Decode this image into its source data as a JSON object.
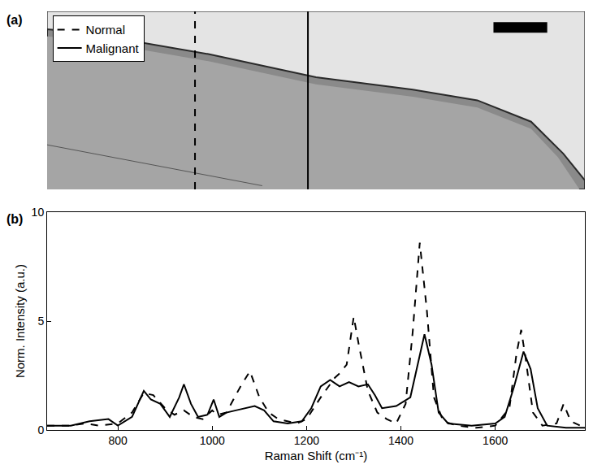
{
  "image_panel": {
    "label": "(a)"
  },
  "chart_data": {
    "type": "line",
    "panel_label": "(b)",
    "x_label": "Raman Shift (cm⁻¹)",
    "y_label": "Norm. Intensity (a.u.)",
    "xlim": [
      650,
      1790
    ],
    "ylim": [
      0,
      10
    ],
    "xticks": [
      800,
      1000,
      1200,
      1400,
      1600
    ],
    "yticks": [
      0,
      5,
      10
    ],
    "grid": false,
    "legend": "upper left",
    "series": [
      {
        "name": "Normal",
        "color": "#000000",
        "line_style": "dash",
        "x": [
          650,
          700,
          730,
          760,
          800,
          830,
          855,
          875,
          900,
          920,
          940,
          960,
          980,
          1000,
          1010,
          1030,
          1060,
          1080,
          1100,
          1120,
          1140,
          1160,
          1180,
          1200,
          1230,
          1260,
          1270,
          1285,
          1300,
          1310,
          1330,
          1350,
          1370,
          1390,
          1410,
          1425,
          1440,
          1455,
          1470,
          1490,
          1520,
          1560,
          1600,
          1630,
          1645,
          1655,
          1665,
          1680,
          1700,
          1730,
          1745,
          1760,
          1790
        ],
        "values": [
          0.2,
          0.2,
          0.3,
          0.2,
          0.3,
          0.8,
          1.7,
          1.6,
          1.0,
          0.7,
          0.9,
          0.6,
          0.5,
          0.9,
          0.7,
          0.8,
          2.0,
          2.7,
          1.5,
          0.8,
          0.5,
          0.4,
          0.3,
          0.5,
          1.5,
          2.4,
          2.6,
          3.0,
          5.2,
          4.0,
          1.8,
          0.8,
          0.5,
          0.3,
          1.2,
          4.5,
          8.6,
          5.5,
          1.5,
          0.4,
          0.2,
          0.1,
          0.2,
          1.0,
          3.5,
          4.6,
          3.2,
          0.8,
          0.2,
          0.3,
          1.2,
          0.4,
          0.1
        ]
      },
      {
        "name": "Malignant",
        "color": "#000000",
        "line_style": "solid",
        "x": [
          650,
          700,
          740,
          780,
          800,
          830,
          855,
          870,
          890,
          910,
          930,
          940,
          955,
          970,
          990,
          1003,
          1015,
          1030,
          1050,
          1070,
          1090,
          1110,
          1130,
          1160,
          1190,
          1210,
          1230,
          1250,
          1270,
          1290,
          1310,
          1330,
          1345,
          1360,
          1390,
          1420,
          1440,
          1450,
          1465,
          1480,
          1500,
          1550,
          1600,
          1620,
          1640,
          1660,
          1675,
          1690,
          1710,
          1750,
          1790
        ],
        "values": [
          0.2,
          0.2,
          0.4,
          0.5,
          0.2,
          0.6,
          1.8,
          1.4,
          1.2,
          0.6,
          1.5,
          2.1,
          1.2,
          0.6,
          0.7,
          1.4,
          0.6,
          0.8,
          0.9,
          1.0,
          1.1,
          0.9,
          0.4,
          0.3,
          0.4,
          1.0,
          2.0,
          2.3,
          2.0,
          2.2,
          2.0,
          2.1,
          1.6,
          1.0,
          1.1,
          1.5,
          3.5,
          4.4,
          3.0,
          0.8,
          0.3,
          0.2,
          0.3,
          0.6,
          2.0,
          3.6,
          2.8,
          1.0,
          0.2,
          0.1,
          0.1
        ]
      }
    ]
  }
}
